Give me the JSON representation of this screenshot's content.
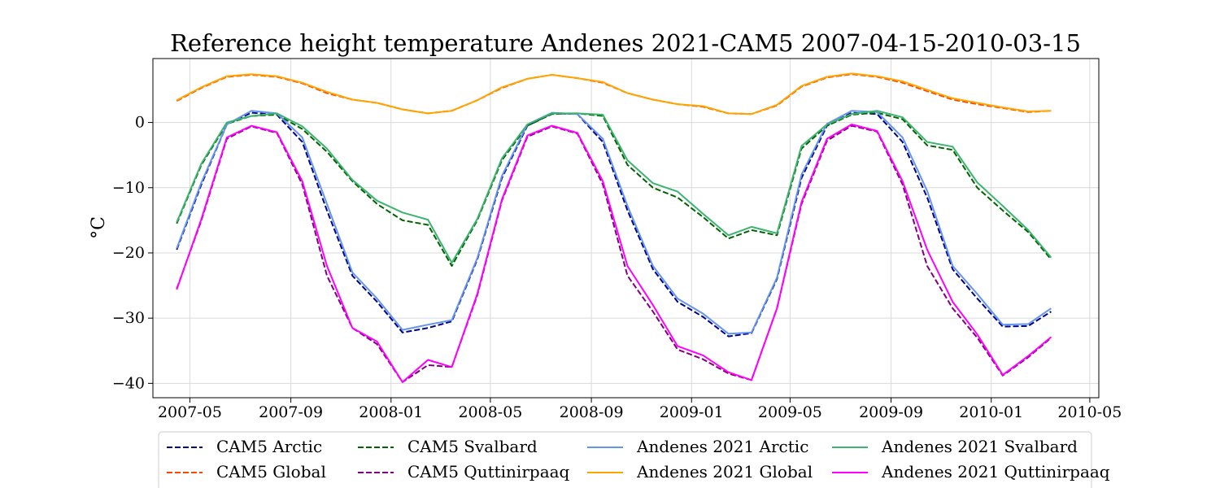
{
  "chart_data": {
    "type": "line",
    "title": "Reference height temperature Andenes 2021-CAM5 2007-04-15-2010-03-15",
    "xlabel": "",
    "ylabel": "°C",
    "ylim": [
      -42.2,
      9.8
    ],
    "yticks": [
      0,
      -10,
      -20,
      -30,
      -40
    ],
    "ytick_labels": [
      "0",
      "−10",
      "−20",
      "−30",
      "−40"
    ],
    "xlim": [
      "2007-03-17",
      "2010-05-12"
    ],
    "xticks": [
      "2007-05-01",
      "2007-09-01",
      "2008-01-01",
      "2008-05-01",
      "2008-09-01",
      "2009-01-01",
      "2009-05-01",
      "2009-09-01",
      "2010-01-01",
      "2010-05-01"
    ],
    "xtick_labels": [
      "2007-05",
      "2007-09",
      "2008-01",
      "2008-05",
      "2008-09",
      "2009-01",
      "2009-05",
      "2009-09",
      "2010-01",
      "2010-05"
    ],
    "grid": true,
    "legend_position": "bottom, outside",
    "x": [
      "2007-04-15",
      "2007-05-15",
      "2007-06-15",
      "2007-07-15",
      "2007-08-15",
      "2007-09-15",
      "2007-10-15",
      "2007-11-15",
      "2007-12-15",
      "2008-01-15",
      "2008-02-15",
      "2008-03-15",
      "2008-04-15",
      "2008-05-15",
      "2008-06-15",
      "2008-07-15",
      "2008-08-15",
      "2008-09-15",
      "2008-10-15",
      "2008-11-15",
      "2008-12-15",
      "2009-01-15",
      "2009-02-15",
      "2009-03-15",
      "2009-04-15",
      "2009-05-15",
      "2009-06-15",
      "2009-07-15",
      "2009-08-15",
      "2009-09-15",
      "2009-10-15",
      "2009-11-15",
      "2009-12-15",
      "2010-01-15",
      "2010-02-15",
      "2010-03-15"
    ],
    "series": [
      {
        "name": "CAM5 Arctic",
        "color": "#00008b",
        "dash": "dashed",
        "values": [
          -19.5,
          -9.5,
          -0.3,
          1.5,
          1.2,
          -3.0,
          -13.5,
          -23.5,
          -27.5,
          -32.2,
          -31.5,
          -30.5,
          -21.0,
          -8.5,
          -0.5,
          1.4,
          1.3,
          -3.0,
          -13.5,
          -22.5,
          -27.5,
          -29.8,
          -32.8,
          -32.3,
          -24.0,
          -8.5,
          -0.5,
          1.5,
          1.3,
          -3.0,
          -11.5,
          -22.5,
          -27.0,
          -31.3,
          -31.2,
          -29.0
        ]
      },
      {
        "name": "CAM5 Global",
        "color": "#ff4500",
        "dash": "dashed",
        "values": [
          3.3,
          5.3,
          7.0,
          7.3,
          7.0,
          6.0,
          4.5,
          3.5,
          3.0,
          2.0,
          1.4,
          1.8,
          3.4,
          5.3,
          6.7,
          7.3,
          6.8,
          6.1,
          4.5,
          3.5,
          2.8,
          2.4,
          1.4,
          1.3,
          2.6,
          5.5,
          6.9,
          7.4,
          7.0,
          6.1,
          4.8,
          3.5,
          2.8,
          2.2,
          1.6,
          1.8
        ]
      },
      {
        "name": "CAM5 Svalbard",
        "color": "#006400",
        "dash": "dashed",
        "values": [
          -15.5,
          -6.5,
          -0.2,
          1.0,
          1.2,
          -1.0,
          -4.5,
          -9.0,
          -12.5,
          -15.0,
          -15.7,
          -22.0,
          -15.0,
          -5.8,
          -0.5,
          1.3,
          1.4,
          1.0,
          -6.5,
          -10.0,
          -11.5,
          -14.5,
          -17.8,
          -16.5,
          -17.3,
          -4.0,
          -0.5,
          1.2,
          1.5,
          0.5,
          -3.5,
          -4.2,
          -10.0,
          -13.5,
          -16.8,
          -21.0
        ]
      },
      {
        "name": "CAM5 Quttinirpaaq",
        "color": "#800080",
        "dash": "dashed",
        "values": [
          -25.5,
          -15.0,
          -2.5,
          -0.6,
          -1.6,
          -9.5,
          -23.5,
          -31.5,
          -34.0,
          -39.8,
          -37.2,
          -37.5,
          -26.5,
          -12.0,
          -2.2,
          -0.6,
          -1.7,
          -9.5,
          -23.5,
          -29.0,
          -34.8,
          -36.3,
          -38.5,
          -39.5,
          -28.5,
          -12.5,
          -2.8,
          -0.5,
          -1.4,
          -9.5,
          -22.0,
          -28.5,
          -33.0,
          -38.8,
          -36.0,
          -33.0
        ]
      },
      {
        "name": "Andenes 2021 Arctic",
        "color": "#6495ed",
        "dash": "solid",
        "values": [
          -19.3,
          -9.2,
          -0.3,
          1.8,
          1.4,
          -2.3,
          -12.5,
          -23.0,
          -27.0,
          -31.8,
          -31.0,
          -30.3,
          -20.8,
          -8.2,
          -0.3,
          1.5,
          1.3,
          -2.5,
          -12.8,
          -22.0,
          -27.0,
          -29.3,
          -32.4,
          -32.2,
          -23.8,
          -8.0,
          -0.2,
          1.8,
          1.6,
          -2.3,
          -10.5,
          -22.0,
          -26.3,
          -31.0,
          -30.9,
          -28.5
        ]
      },
      {
        "name": "Andenes 2021 Global",
        "color": "#ffa500",
        "dash": "solid",
        "values": [
          3.4,
          5.4,
          7.1,
          7.4,
          7.1,
          6.1,
          4.7,
          3.5,
          3.0,
          2.0,
          1.4,
          1.8,
          3.4,
          5.4,
          6.7,
          7.3,
          6.8,
          6.2,
          4.5,
          3.5,
          2.8,
          2.5,
          1.4,
          1.3,
          2.7,
          5.6,
          7.0,
          7.5,
          7.1,
          6.3,
          5.0,
          3.7,
          3.0,
          2.3,
          1.7,
          1.8
        ]
      },
      {
        "name": "Andenes 2021 Svalbard",
        "color": "#3cb371",
        "dash": "solid",
        "values": [
          -15.3,
          -6.3,
          0.0,
          1.0,
          1.4,
          -0.6,
          -4.0,
          -8.8,
          -12.0,
          -13.8,
          -14.9,
          -21.5,
          -14.8,
          -5.5,
          -0.3,
          1.4,
          1.4,
          1.2,
          -5.8,
          -9.3,
          -10.6,
          -14.0,
          -17.3,
          -16.0,
          -17.0,
          -3.6,
          -0.3,
          1.3,
          1.8,
          0.8,
          -3.0,
          -3.7,
          -9.2,
          -12.8,
          -16.5,
          -20.7
        ]
      },
      {
        "name": "Andenes 2021 Quttinirpaaq",
        "color": "#ff00ff",
        "dash": "solid",
        "values": [
          -25.6,
          -14.8,
          -2.3,
          -0.5,
          -1.5,
          -9.0,
          -22.0,
          -31.5,
          -33.6,
          -39.8,
          -36.4,
          -37.5,
          -26.3,
          -11.8,
          -2.0,
          -0.5,
          -1.6,
          -9.0,
          -22.0,
          -28.0,
          -34.3,
          -35.7,
          -38.3,
          -39.5,
          -28.5,
          -12.2,
          -2.5,
          -0.3,
          -1.3,
          -9.0,
          -19.5,
          -27.5,
          -32.5,
          -38.7,
          -35.8,
          -32.9
        ]
      }
    ]
  }
}
